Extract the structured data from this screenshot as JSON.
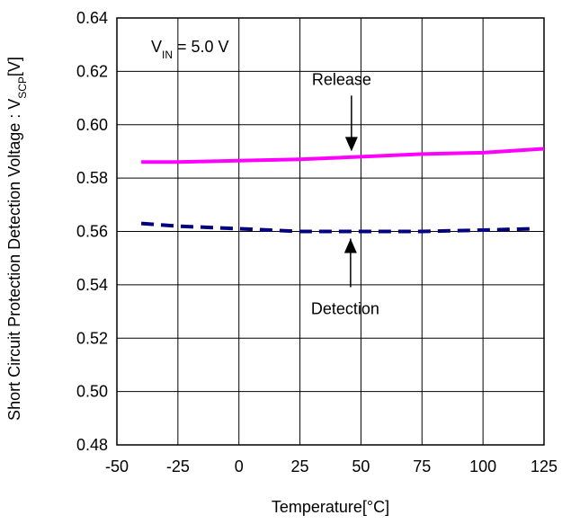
{
  "chart_data": {
    "type": "line",
    "title": "",
    "xlabel": "Temperature[°C]",
    "ylabel": "Short Circuit Protection Detection Voltage : V",
    "ylabel_sub": "SCP",
    "ylabel_suffix": "[V]",
    "xlim": [
      -50,
      125
    ],
    "ylim": [
      0.48,
      0.64
    ],
    "xticks": [
      -50,
      -25,
      0,
      25,
      50,
      75,
      100,
      125
    ],
    "yticks": [
      "0.48",
      "0.50",
      "0.52",
      "0.54",
      "0.56",
      "0.58",
      "0.60",
      "0.62",
      "0.64"
    ],
    "grid": true,
    "condition": {
      "prefix": "V",
      "sub": "IN",
      "suffix": " = 5.0 V"
    },
    "series": [
      {
        "name": "Release",
        "color": "#ff00ff",
        "style": "solid",
        "x": [
          -40,
          -25,
          0,
          25,
          50,
          75,
          100,
          125
        ],
        "y": [
          0.586,
          0.586,
          0.5865,
          0.587,
          0.588,
          0.589,
          0.5895,
          0.591
        ]
      },
      {
        "name": "Detection",
        "color": "#000080",
        "style": "dashed",
        "x": [
          -40,
          -25,
          0,
          25,
          50,
          75,
          100,
          120
        ],
        "y": [
          0.563,
          0.562,
          0.561,
          0.56,
          0.56,
          0.56,
          0.5605,
          0.561
        ]
      }
    ],
    "annotations": [
      {
        "label": "Release",
        "target_series": "Release",
        "x": 45,
        "y": 0.588
      },
      {
        "label": "Detection",
        "target_series": "Detection",
        "x": 45,
        "y": 0.56
      }
    ]
  }
}
